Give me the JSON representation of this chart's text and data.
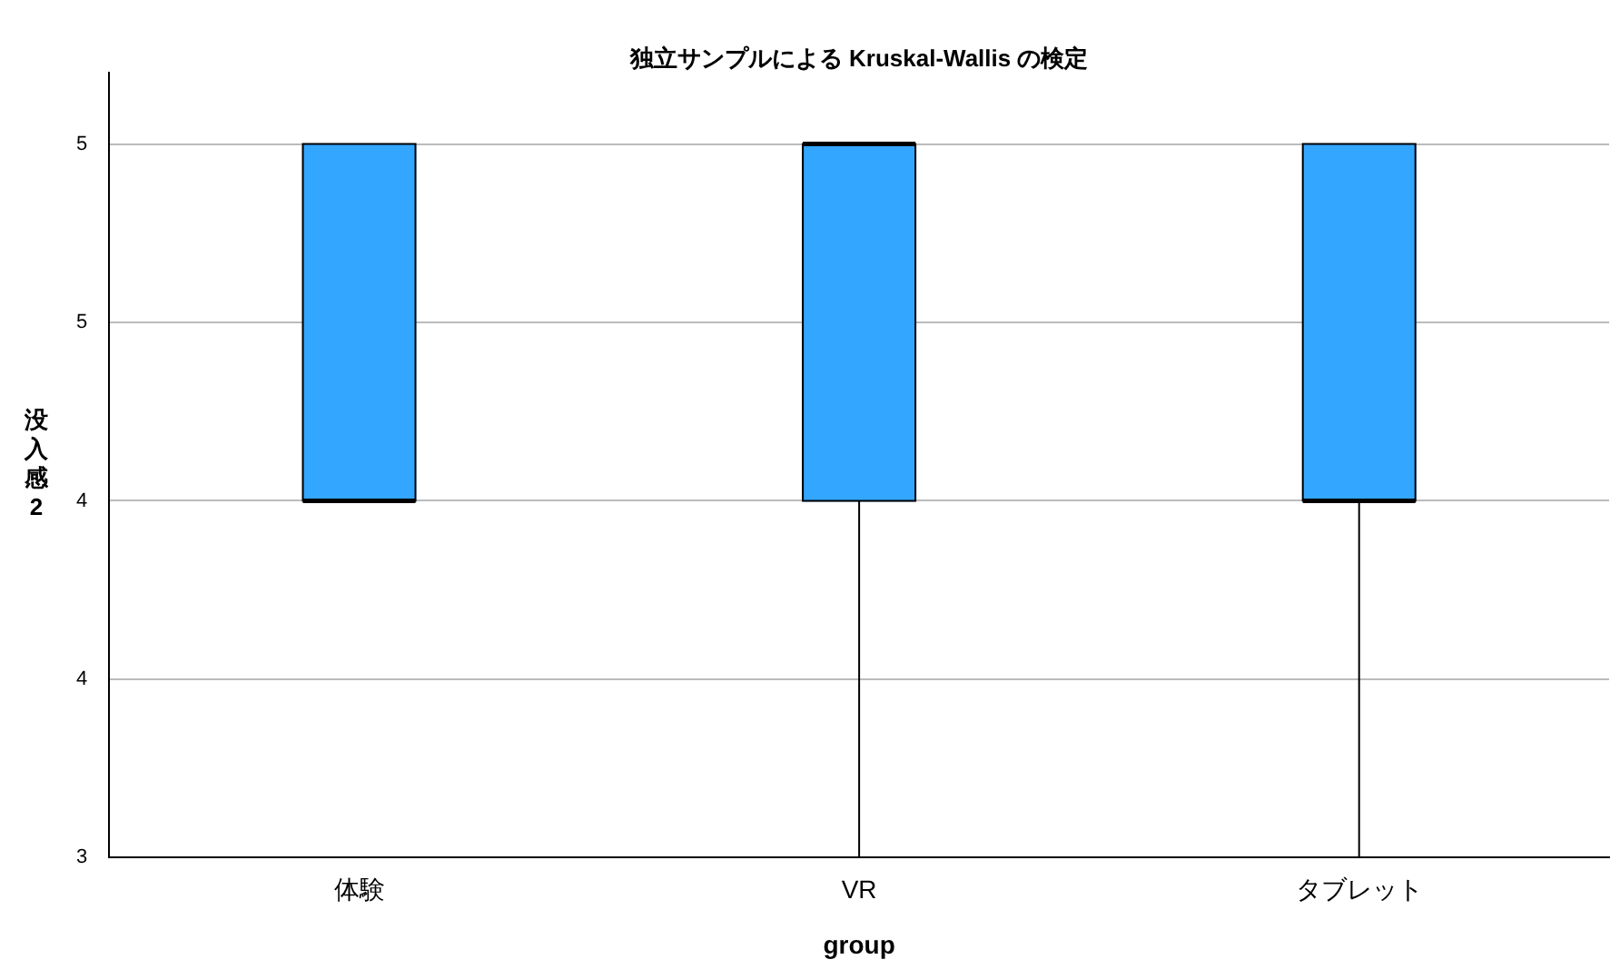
{
  "chart_data": {
    "type": "box",
    "title": "独立サンプルによる Kruskal-Wallis の検定",
    "xlabel": "group",
    "ylabel": "没入感2",
    "categories": [
      "体験",
      "VR",
      "タブレット"
    ],
    "boxes": [
      {
        "low": 4,
        "q1": 4,
        "median": 4,
        "q3": 5,
        "high": 5
      },
      {
        "low": 3,
        "q1": 4,
        "median": 5,
        "q3": 5,
        "high": 5
      },
      {
        "low": 3,
        "q1": 4,
        "median": 4,
        "q3": 5,
        "high": 5
      }
    ],
    "color": "#33a6ff",
    "ylim": [
      3,
      5.2
    ],
    "yticks": [
      3,
      {
        "value": 3.5,
        "label": "4"
      },
      4,
      {
        "value": 4.5,
        "label": "5"
      },
      5
    ],
    "grid": "y",
    "legend": false
  }
}
